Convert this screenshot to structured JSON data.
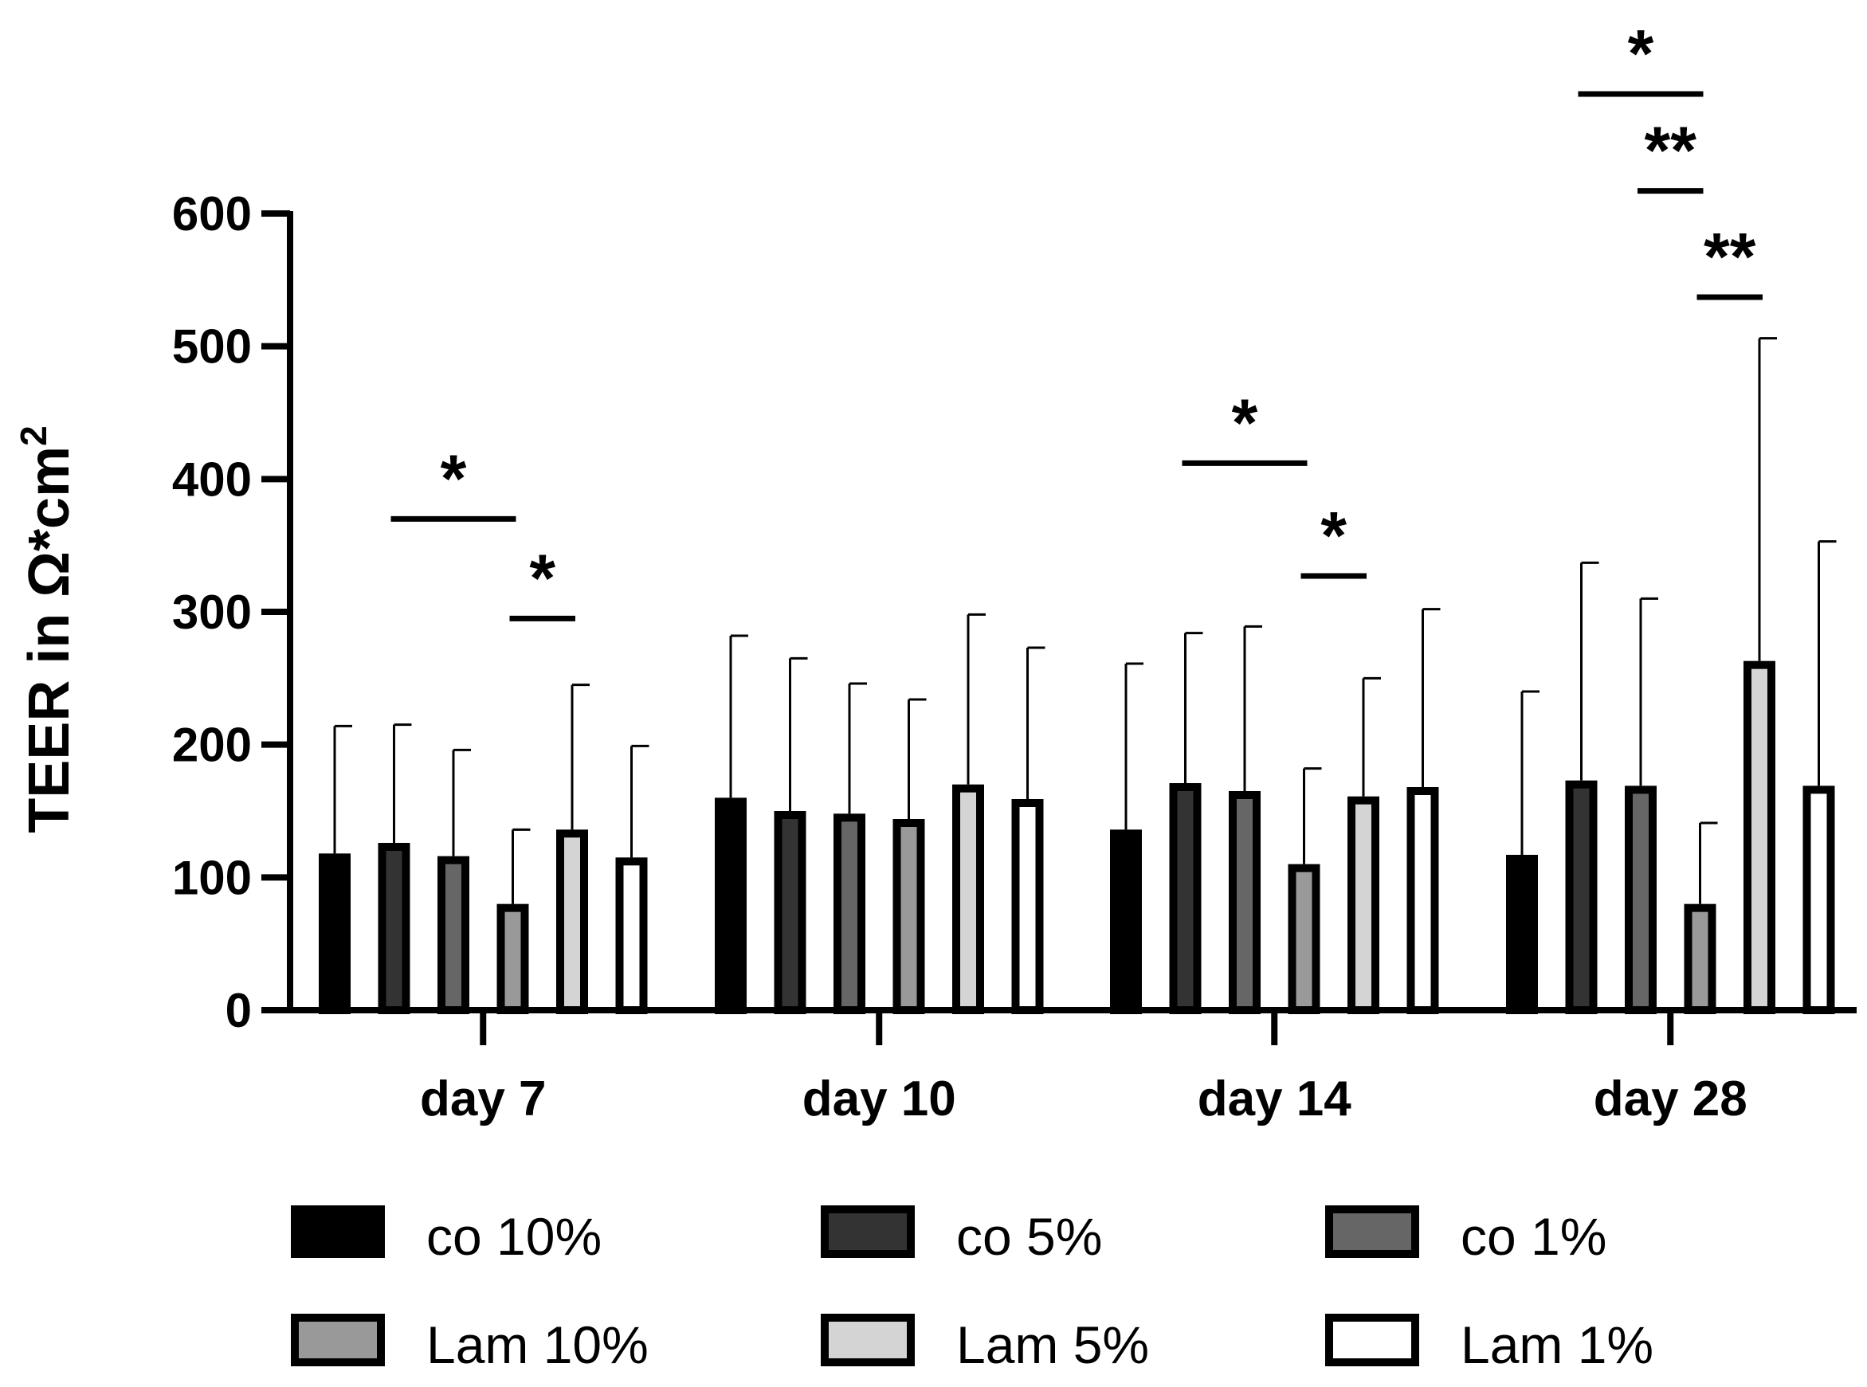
{
  "chart_data": {
    "type": "bar",
    "title": "",
    "xlabel": "",
    "ylabel": "TEER in Ω*cm²",
    "ylabel_main": "TEER in Ω*cm",
    "ylabel_sup": "2",
    "ylim": [
      0,
      600
    ],
    "yticks": [
      0,
      100,
      200,
      300,
      400,
      500,
      600
    ],
    "grid": false,
    "legend_position": "bottom",
    "categories": [
      "day 7",
      "day 10",
      "day 14",
      "day 28"
    ],
    "series": [
      {
        "name": "co 10%",
        "color": "#000000",
        "values": [
          118,
          160,
          136,
          117
        ],
        "errors": [
          96,
          122,
          125,
          123
        ]
      },
      {
        "name": "co 5%",
        "color": "#333333",
        "values": [
          126,
          150,
          171,
          173
        ],
        "errors": [
          89,
          115,
          113,
          164
        ]
      },
      {
        "name": "co 1%",
        "color": "#666666",
        "values": [
          116,
          148,
          165,
          169
        ],
        "errors": [
          80,
          98,
          124,
          141
        ]
      },
      {
        "name": "Lam 10%",
        "color": "#999999",
        "values": [
          80,
          144,
          110,
          80
        ],
        "errors": [
          56,
          90,
          72,
          61
        ]
      },
      {
        "name": "Lam 5%",
        "color": "#d4d4d4",
        "values": [
          136,
          170,
          161,
          263
        ],
        "errors": [
          109,
          128,
          89,
          243
        ]
      },
      {
        "name": "Lam 1%",
        "color": "#ffffff",
        "values": [
          115,
          159,
          168,
          169
        ],
        "errors": [
          84,
          114,
          134,
          184
        ]
      }
    ],
    "significance": [
      {
        "category": "day 7",
        "from_series": 1,
        "to_series": 3,
        "y": 370,
        "label": "*"
      },
      {
        "category": "day 7",
        "from_series": 3,
        "to_series": 4,
        "y": 295,
        "label": "*"
      },
      {
        "category": "day 14",
        "from_series": 1,
        "to_series": 3,
        "y": 412,
        "label": "*"
      },
      {
        "category": "day 14",
        "from_series": 3,
        "to_series": 4,
        "y": 327,
        "label": "*"
      },
      {
        "category": "day 28",
        "from_series": 1,
        "to_series": 3,
        "y": 690,
        "label": "*"
      },
      {
        "category": "day 28",
        "from_series": 2,
        "to_series": 3,
        "y": 617,
        "label": "**"
      },
      {
        "category": "day 28",
        "from_series": 3,
        "to_series": 4,
        "y": 537,
        "label": "**"
      }
    ]
  }
}
